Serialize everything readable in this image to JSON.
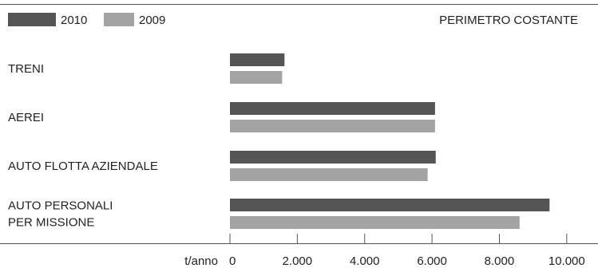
{
  "chart_data": {
    "type": "bar",
    "orientation": "horizontal",
    "annotation": "PERIMETRO COSTANTE",
    "categories": [
      [
        "TRENI"
      ],
      [
        "AEREI"
      ],
      [
        "AUTO FLOTTA AZIENDALE"
      ],
      [
        "AUTO PERSONALI",
        "PER MISSIONE"
      ]
    ],
    "series": [
      {
        "name": "2010",
        "color": "#555555",
        "values": [
          1620,
          6090,
          6110,
          9490
        ]
      },
      {
        "name": "2009",
        "color": "#a3a3a3",
        "values": [
          1550,
          6090,
          5870,
          8600
        ]
      }
    ],
    "xlabel": "t/anno",
    "xlim": [
      0,
      11000
    ],
    "xticks": [
      0,
      2000,
      4000,
      6000,
      8000,
      10000
    ],
    "xtick_labels": [
      "0",
      "2.000",
      "4.000",
      "6.000",
      "8.000",
      "10.000"
    ],
    "legend_position": "top-left",
    "grid": false
  }
}
